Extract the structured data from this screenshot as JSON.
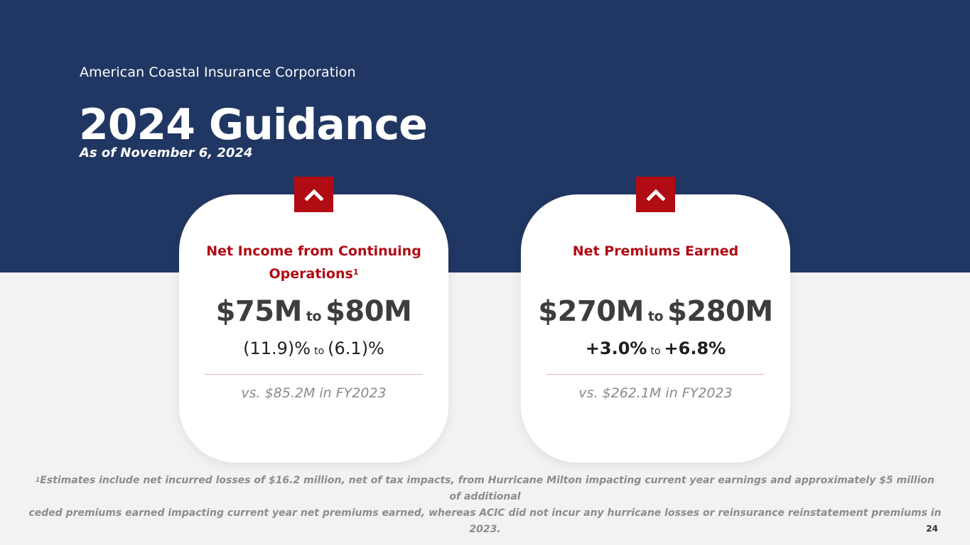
{
  "header": {
    "company": "American Coastal Insurance Corporation",
    "title": "2024 Guidance",
    "subtitle": "As of November 6, 2024"
  },
  "cards": [
    {
      "title": "Net Income from Continuing Operations",
      "footnote_marker": "1",
      "value_low": "$75M",
      "value_sep": "to",
      "value_high": "$80M",
      "pct_low": "(11.9)%",
      "pct_sep": "to",
      "pct_high": "(6.1)%",
      "comparison": "vs. $85.2M in FY2023",
      "icon": "chevron-up-icon"
    },
    {
      "title": "Net Premiums Earned",
      "value_low": "$270M",
      "value_sep": "to",
      "value_high": "$280M",
      "pct_low": "+3.0%",
      "pct_sep": "to",
      "pct_high": "+6.8%",
      "comparison": "vs. $262.1M in FY2023",
      "icon": "chevron-up-icon"
    }
  ],
  "footnote": {
    "marker": "1",
    "line1": "Estimates include net incurred losses of $16.2 million, net of tax impacts, from Hurricane Milton impacting current year earnings and approximately $5 million of additional",
    "line2": "ceded premiums earned impacting current year net premiums earned, whereas ACIC did not incur any hurricane losses or reinsurance reinstatement premiums in 2023."
  },
  "page_number": "24",
  "colors": {
    "navy": "#213763",
    "accent_red": "#b10b14",
    "background": "#f2f2f2",
    "card": "#ffffff"
  }
}
